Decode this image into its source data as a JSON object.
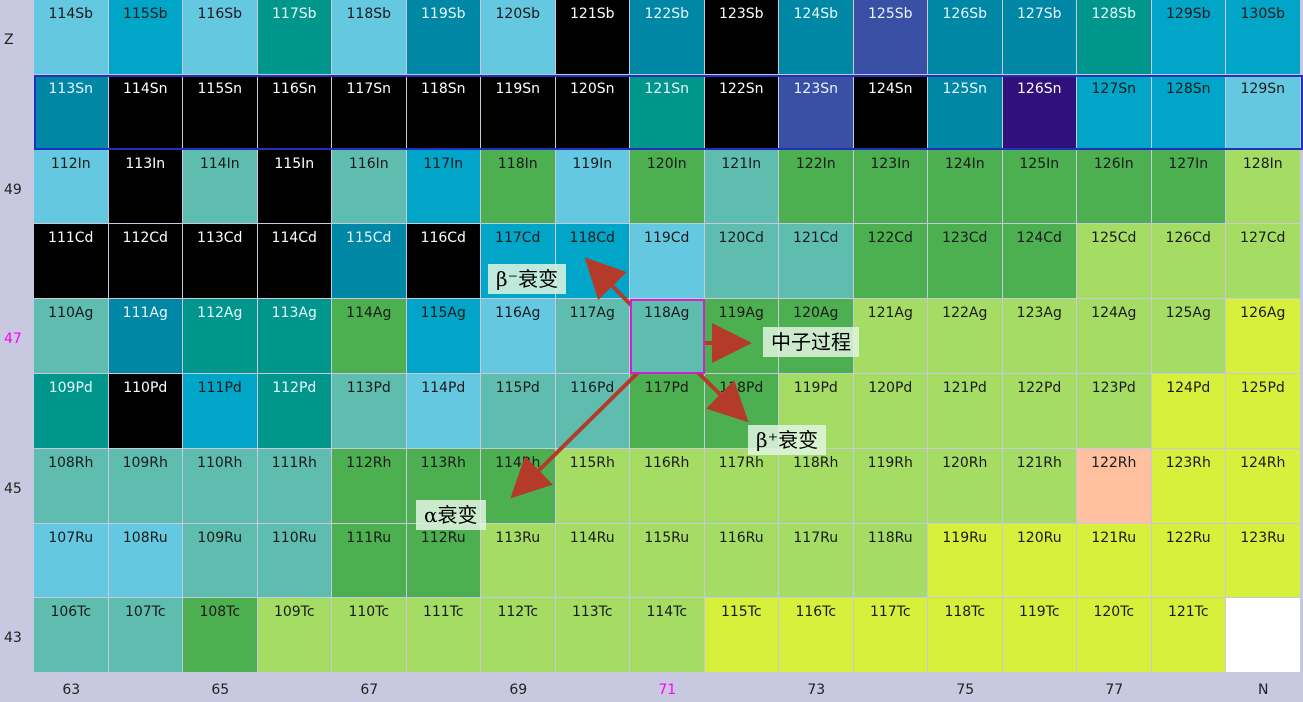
{
  "axis": {
    "z_label": "Z",
    "n_label": "N",
    "highlight_color": "#ff00ff",
    "z_ticks": [
      {
        "row": 0,
        "label": "Z"
      },
      {
        "row": 2,
        "label": "49"
      },
      {
        "row": 4,
        "label": "47",
        "highlight": true
      },
      {
        "row": 6,
        "label": "45"
      },
      {
        "row": 8,
        "label": "43"
      }
    ],
    "n_ticks": [
      {
        "col": 0,
        "label": "63"
      },
      {
        "col": 2,
        "label": "65"
      },
      {
        "col": 4,
        "label": "67"
      },
      {
        "col": 6,
        "label": "69"
      },
      {
        "col": 8,
        "label": "71",
        "highlight": true
      },
      {
        "col": 10,
        "label": "73"
      },
      {
        "col": 12,
        "label": "75"
      },
      {
        "col": 14,
        "label": "77"
      },
      {
        "col": 16,
        "label": "N"
      }
    ]
  },
  "rows": [
    {
      "element": "Sb",
      "start": 114,
      "colors": [
        "#64c8e0",
        "#00a5c8",
        "#64c8e0",
        "#00968c",
        "#64c8e0",
        "#0087a5",
        "#64c8e0",
        "#000000",
        "#0087a5",
        "#000000",
        "#0087a5",
        "#3a50a5",
        "#0087a5",
        "#0087a5",
        "#00968c",
        "#00a5c8",
        "#00a5c8"
      ]
    },
    {
      "element": "Sn",
      "start": 113,
      "colors": [
        "#0087a5",
        "#000000",
        "#000000",
        "#000000",
        "#000000",
        "#000000",
        "#000000",
        "#000000",
        "#00968c",
        "#000000",
        "#3a50a5",
        "#000000",
        "#0087a5",
        "#30107a",
        "#00a5c8",
        "#00a5c8",
        "#64c8e0"
      ]
    },
    {
      "element": "In",
      "start": 112,
      "colors": [
        "#64c8e0",
        "#000000",
        "#5fbdb0",
        "#000000",
        "#5fbdb0",
        "#00a5c8",
        "#4caf50",
        "#64c8e0",
        "#4caf50",
        "#5fbdb0",
        "#4caf50",
        "#4caf50",
        "#4caf50",
        "#4caf50",
        "#4caf50",
        "#4caf50",
        "#a5dc64"
      ]
    },
    {
      "element": "Cd",
      "start": 111,
      "colors": [
        "#000000",
        "#000000",
        "#000000",
        "#000000",
        "#0087a5",
        "#000000",
        "#00a5c8",
        "#00a5c8",
        "#64c8e0",
        "#5fbdb0",
        "#5fbdb0",
        "#4caf50",
        "#4caf50",
        "#4caf50",
        "#a5dc64",
        "#a5dc64",
        "#a5dc64"
      ]
    },
    {
      "element": "Ag",
      "start": 110,
      "colors": [
        "#5fbdb0",
        "#0087a5",
        "#00968c",
        "#00968c",
        "#4caf50",
        "#00a5c8",
        "#64c8e0",
        "#5fbdb0",
        "#5fbdb0",
        "#4caf50",
        "#4caf50",
        "#a5dc64",
        "#a5dc64",
        "#a5dc64",
        "#a5dc64",
        "#a5dc64",
        "#d7f03c"
      ]
    },
    {
      "element": "Pd",
      "start": 109,
      "colors": [
        "#00968c",
        "#000000",
        "#00a5c8",
        "#00968c",
        "#5fbdb0",
        "#64c8e0",
        "#5fbdb0",
        "#5fbdb0",
        "#4caf50",
        "#4caf50",
        "#a5dc64",
        "#a5dc64",
        "#a5dc64",
        "#a5dc64",
        "#a5dc64",
        "#d7f03c",
        "#d7f03c"
      ]
    },
    {
      "element": "Rh",
      "start": 108,
      "colors": [
        "#5fbdb0",
        "#5fbdb0",
        "#5fbdb0",
        "#5fbdb0",
        "#4caf50",
        "#4caf50",
        "#4caf50",
        "#a5dc64",
        "#a5dc64",
        "#a5dc64",
        "#a5dc64",
        "#a5dc64",
        "#a5dc64",
        "#a5dc64",
        "#ffc0a0",
        "#d7f03c",
        "#d7f03c"
      ]
    },
    {
      "element": "Ru",
      "start": 107,
      "colors": [
        "#64c8e0",
        "#64c8e0",
        "#5fbdb0",
        "#5fbdb0",
        "#4caf50",
        "#4caf50",
        "#a5dc64",
        "#a5dc64",
        "#a5dc64",
        "#a5dc64",
        "#a5dc64",
        "#a5dc64",
        "#d7f03c",
        "#d7f03c",
        "#d7f03c",
        "#d7f03c",
        "#d7f03c"
      ]
    },
    {
      "element": "Tc",
      "start": 106,
      "colors": [
        "#5fbdb0",
        "#5fbdb0",
        "#4caf50",
        "#a5dc64",
        "#a5dc64",
        "#a5dc64",
        "#a5dc64",
        "#a5dc64",
        "#a5dc64",
        "#d7f03c",
        "#d7f03c",
        "#d7f03c",
        "#d7f03c",
        "#d7f03c",
        "#d7f03c",
        "#d7f03c",
        "#ffffff"
      ]
    }
  ],
  "annotations": {
    "beta_minus": "β⁻衰变",
    "neutron": "中子过程",
    "beta_plus": "β⁺衰变",
    "alpha": "α衰变"
  },
  "colors": {
    "arrow": "#b43a2a",
    "target_box": "#d020d0",
    "sn_row_border": "#2030c0"
  }
}
